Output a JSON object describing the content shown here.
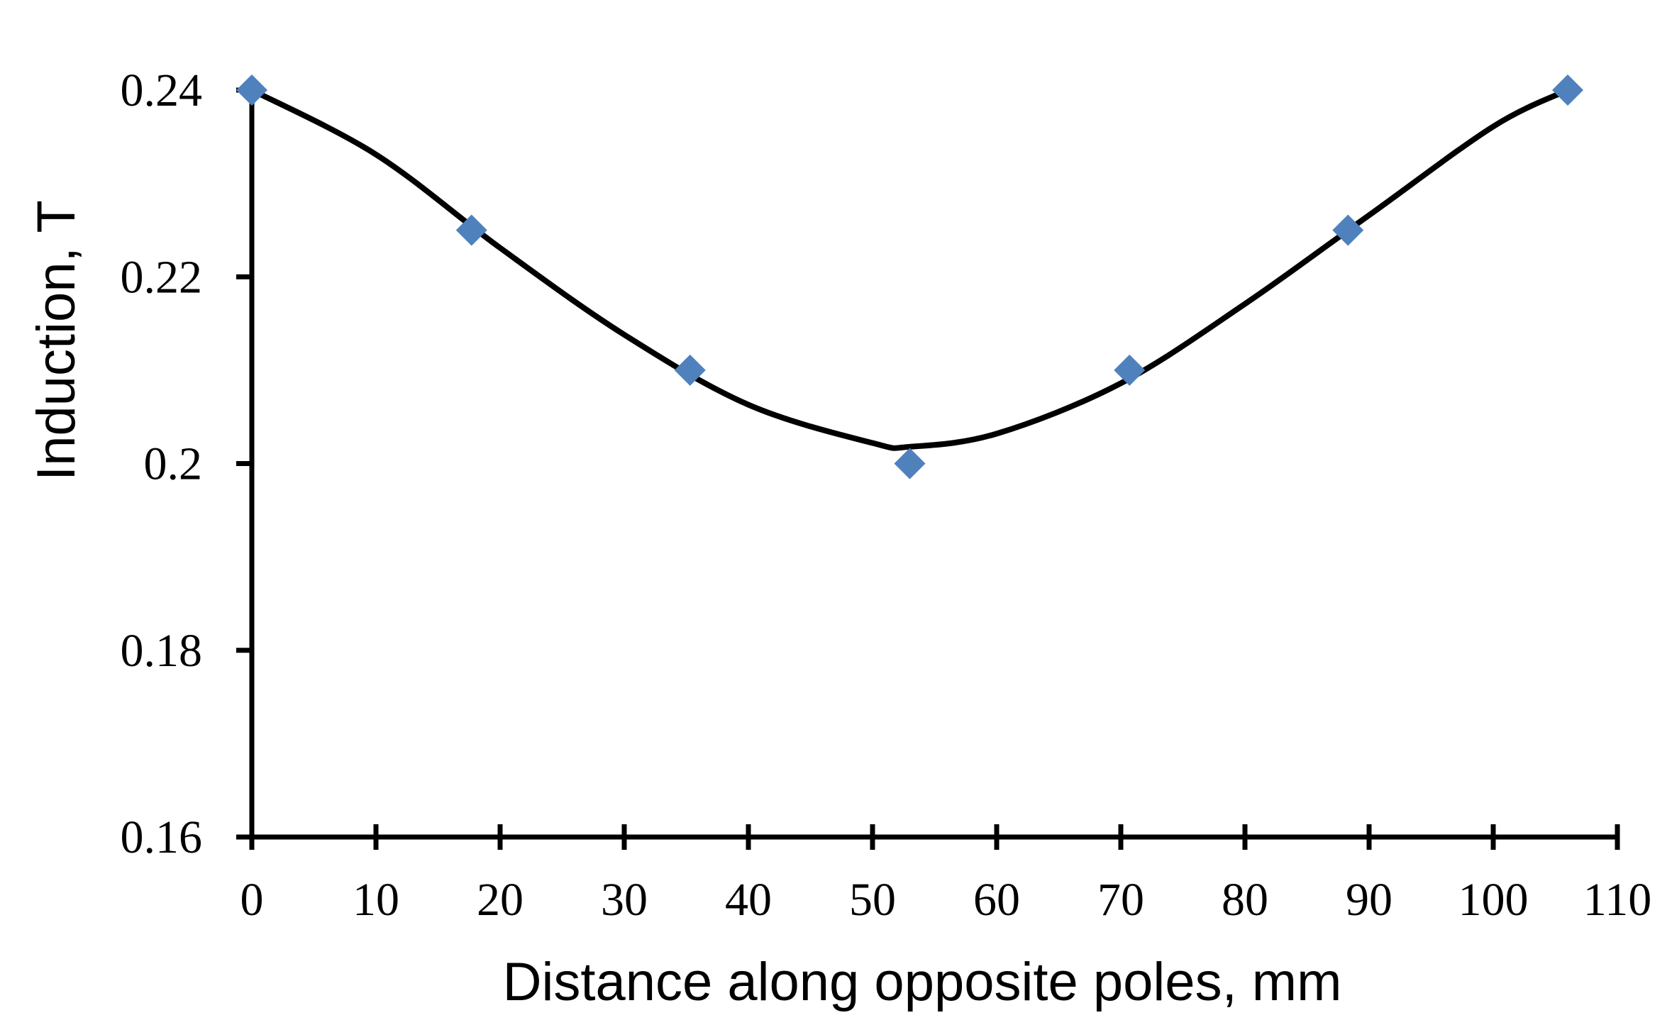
{
  "chart_data": {
    "type": "scatter",
    "title": "",
    "xlabel": "Distance along opposite poles, mm",
    "ylabel": "Induction, T",
    "xlim": [
      0,
      110
    ],
    "ylim": [
      0.16,
      0.24
    ],
    "x_ticks": [
      0,
      10,
      20,
      30,
      40,
      50,
      60,
      70,
      80,
      90,
      100,
      110
    ],
    "x_tick_labels": [
      "0",
      "10",
      "20",
      "30",
      "40",
      "50",
      "60",
      "70",
      "80",
      "90",
      "100",
      "110"
    ],
    "y_ticks": [
      0.16,
      0.18,
      0.2,
      0.22,
      0.24
    ],
    "y_tick_labels": [
      "0.16",
      "0.18",
      "0.2",
      "0.22",
      "0.24"
    ],
    "grid": false,
    "legend": "none",
    "series": [
      {
        "kind": "points",
        "marker": "diamond",
        "color": "#4f81bd",
        "x": [
          0,
          17.7,
          35.3,
          53,
          70.7,
          88.3,
          106
        ],
        "y": [
          0.24,
          0.225,
          0.21,
          0.2,
          0.21,
          0.225,
          0.24
        ]
      },
      {
        "kind": "trend-curve",
        "color": "#000000",
        "x": [
          0,
          10,
          20,
          30,
          40,
          50,
          53,
          60,
          70,
          80,
          90,
          100,
          106
        ],
        "y": [
          0.24,
          0.2331,
          0.2231,
          0.2138,
          0.2063,
          0.2022,
          0.2018,
          0.2032,
          0.2086,
          0.2171,
          0.2266,
          0.2361,
          0.24
        ]
      }
    ]
  }
}
